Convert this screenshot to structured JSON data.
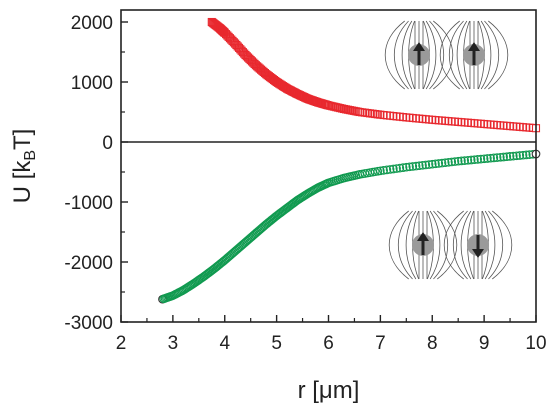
{
  "chart_data": {
    "type": "scatter",
    "title": "",
    "xlabel": "r [μm]",
    "ylabel_main": "U [k",
    "ylabel_sub": "B",
    "ylabel_end": "T]",
    "xlim": [
      2,
      10
    ],
    "ylim": [
      -3000,
      2200
    ],
    "x_ticks": [
      2,
      3,
      4,
      5,
      6,
      7,
      8,
      9,
      10
    ],
    "y_ticks": [
      -3000,
      -2000,
      -1000,
      0,
      1000,
      2000
    ],
    "zero_line": true,
    "grid": false,
    "legend": "none",
    "series": [
      {
        "color": "#e8282e",
        "marker": "square",
        "inset": "parallel-dipoles",
        "x": [
          3.75,
          3.9,
          4.0,
          4.2,
          4.4,
          4.6,
          4.8,
          5.0,
          5.2,
          5.4,
          5.6,
          5.8,
          6.0,
          6.3,
          6.6,
          7.0,
          7.5,
          8.0,
          8.5,
          9.0,
          9.5,
          10.0
        ],
        "y": [
          2000,
          1900,
          1820,
          1640,
          1450,
          1280,
          1130,
          1000,
          890,
          800,
          720,
          660,
          610,
          550,
          500,
          455,
          410,
          370,
          335,
          300,
          265,
          230
        ]
      },
      {
        "color": "#119a50",
        "marker": "circle",
        "inset": "antiparallel-dipoles",
        "x": [
          2.8,
          3.0,
          3.2,
          3.4,
          3.6,
          3.8,
          4.0,
          4.2,
          4.4,
          4.6,
          4.8,
          5.0,
          5.2,
          5.4,
          5.6,
          5.8,
          6.0,
          6.3,
          6.6,
          7.0,
          7.5,
          8.0,
          8.5,
          9.0,
          9.5,
          10.0
        ],
        "y": [
          -2620,
          -2560,
          -2470,
          -2360,
          -2240,
          -2110,
          -1970,
          -1820,
          -1670,
          -1520,
          -1370,
          -1230,
          -1100,
          -970,
          -860,
          -760,
          -680,
          -600,
          -540,
          -480,
          -420,
          -370,
          -320,
          -280,
          -240,
          -200
        ]
      }
    ]
  }
}
